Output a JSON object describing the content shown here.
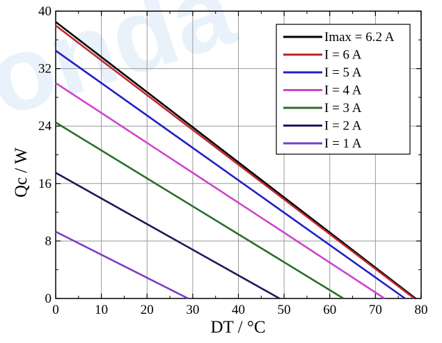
{
  "watermark": {
    "text": "onda",
    "color": "#e9f2fb"
  },
  "chart_data": {
    "type": "line",
    "xlabel": "DT / °C",
    "ylabel": "Qc / W",
    "xlim": [
      0,
      80
    ],
    "ylim": [
      0,
      40
    ],
    "xticks": [
      "0",
      "10",
      "20",
      "30",
      "40",
      "50",
      "60",
      "70",
      "80"
    ],
    "yticks": [
      "0",
      "8",
      "16",
      "24",
      "32",
      "40"
    ],
    "grid": true,
    "legend_position": "top-right",
    "series": [
      {
        "name": "Imax = 6.2 A",
        "color": "#000000",
        "x": [
          0,
          78.8
        ],
        "y": [
          38.5,
          0
        ]
      },
      {
        "name": "I = 6 A",
        "color": "#c0282d",
        "x": [
          0,
          78.5
        ],
        "y": [
          38.0,
          0
        ]
      },
      {
        "name": "I = 5 A",
        "color": "#1f1fc8",
        "x": [
          0,
          76.5
        ],
        "y": [
          34.5,
          0
        ]
      },
      {
        "name": "I = 4 A",
        "color": "#cc44cc",
        "x": [
          0,
          72.0
        ],
        "y": [
          30.0,
          0
        ]
      },
      {
        "name": "I = 3 A",
        "color": "#2a6e2a",
        "x": [
          0,
          63.0
        ],
        "y": [
          24.5,
          0
        ]
      },
      {
        "name": "I = 2 A",
        "color": "#1a1a5a",
        "x": [
          0,
          49.0
        ],
        "y": [
          17.5,
          0
        ]
      },
      {
        "name": "I = 1 A",
        "color": "#7a3cc8",
        "x": [
          0,
          29.0
        ],
        "y": [
          9.3,
          0
        ]
      }
    ]
  }
}
